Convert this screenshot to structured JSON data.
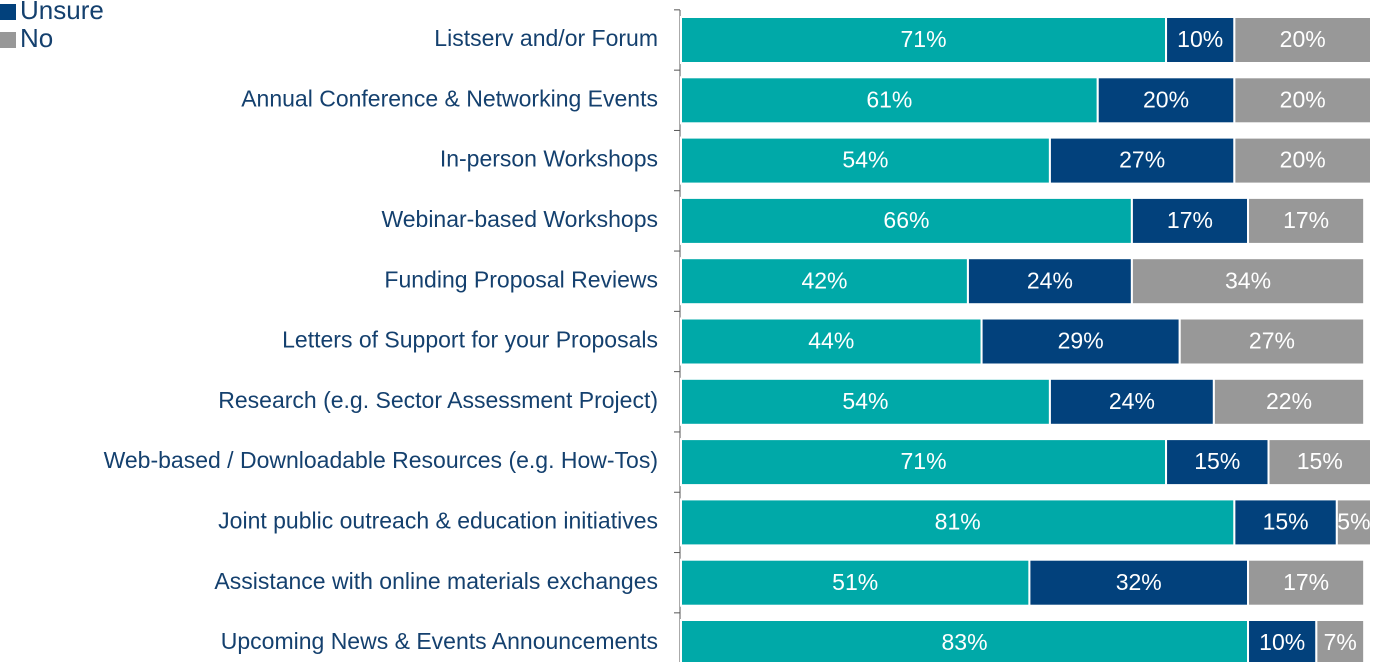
{
  "chart_data": {
    "type": "stacked_barh",
    "categories": [
      "Listserv and/or Forum",
      "Annual Conference & Networking Events",
      "In-person Workshops",
      "Webinar-based Workshops",
      "Funding Proposal Reviews",
      "Letters of Support for your Proposals",
      "Research (e.g. Sector Assessment Project)",
      "Web-based / Downloadable Resources (e.g. How-Tos)",
      "Joint public outreach & education initiatives",
      "Assistance with online materials exchanges",
      "Upcoming News & Events Announcements"
    ],
    "series": [
      {
        "color": "#00a9a8",
        "values": [
          71,
          61,
          54,
          66,
          42,
          44,
          54,
          71,
          81,
          51,
          83
        ],
        "value_labels": [
          "71%",
          "61%",
          "54%",
          "66%",
          "42%",
          "44%",
          "54%",
          "71%",
          "81%",
          "51%",
          "83%"
        ]
      },
      {
        "name": "Unsure",
        "color": "#02417c",
        "values": [
          10,
          20,
          27,
          17,
          24,
          29,
          24,
          15,
          15,
          32,
          10
        ],
        "value_labels": [
          "10%",
          "20%",
          "27%",
          "17%",
          "24%",
          "29%",
          "24%",
          "15%",
          "15%",
          "32%",
          "10%"
        ]
      },
      {
        "name": "No",
        "color": "#989898",
        "values": [
          20,
          20,
          20,
          17,
          34,
          27,
          22,
          15,
          5,
          17,
          7
        ],
        "value_labels": [
          "20%",
          "20%",
          "20%",
          "17%",
          "34%",
          "27%",
          "22%",
          "15%",
          "5%",
          "17%",
          "7%"
        ]
      }
    ],
    "xlim": [
      0,
      101
    ],
    "legend": "top-left"
  }
}
